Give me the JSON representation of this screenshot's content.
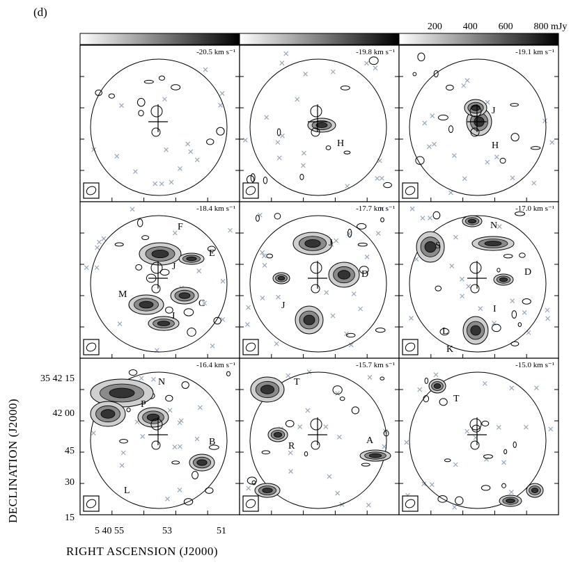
{
  "figure": {
    "panel_label": "(d)",
    "xlabel": "RIGHT ASCENSION (J2000)",
    "ylabel": "DECLINATION (J2000)"
  },
  "chart_data": {
    "type": "heatmap",
    "description_kind": "channel maps",
    "colorbar": {
      "unit": "mJy",
      "ticks": [
        "200",
        "400",
        "600",
        "800 mJy"
      ],
      "range": [
        0,
        900
      ],
      "colormap": "white-to-black grayscale"
    },
    "x_ticks": [
      "5 40 55",
      "53",
      "51"
    ],
    "y_ticks": [
      "35 42 15",
      "42 00",
      "45",
      "30",
      "15"
    ],
    "panels": [
      {
        "velocity": "-20.5 km s⁻¹",
        "sources": []
      },
      {
        "velocity": "-19.8 km s⁻¹",
        "sources": [
          "H"
        ]
      },
      {
        "velocity": "-19.1 km s⁻¹",
        "sources": [
          "J",
          "H"
        ]
      },
      {
        "velocity": "-18.4 km s⁻¹",
        "sources": [
          "F",
          "E",
          "J",
          "M",
          "C",
          "I"
        ]
      },
      {
        "velocity": "-17.7 km s⁻¹",
        "sources": [
          "J",
          "D",
          "J"
        ]
      },
      {
        "velocity": "-17.0 km s⁻¹",
        "sources": [
          "N",
          "S",
          "D",
          "I",
          "L",
          "K"
        ]
      },
      {
        "velocity": "-16.4 km s⁻¹",
        "sources": [
          "N",
          "P",
          "B",
          "L"
        ]
      },
      {
        "velocity": "-15.7 km s⁻¹",
        "sources": [
          "T",
          "R",
          "A"
        ]
      },
      {
        "velocity": "-15.0 km s⁻¹",
        "sources": [
          "T"
        ]
      }
    ],
    "grid": false
  }
}
